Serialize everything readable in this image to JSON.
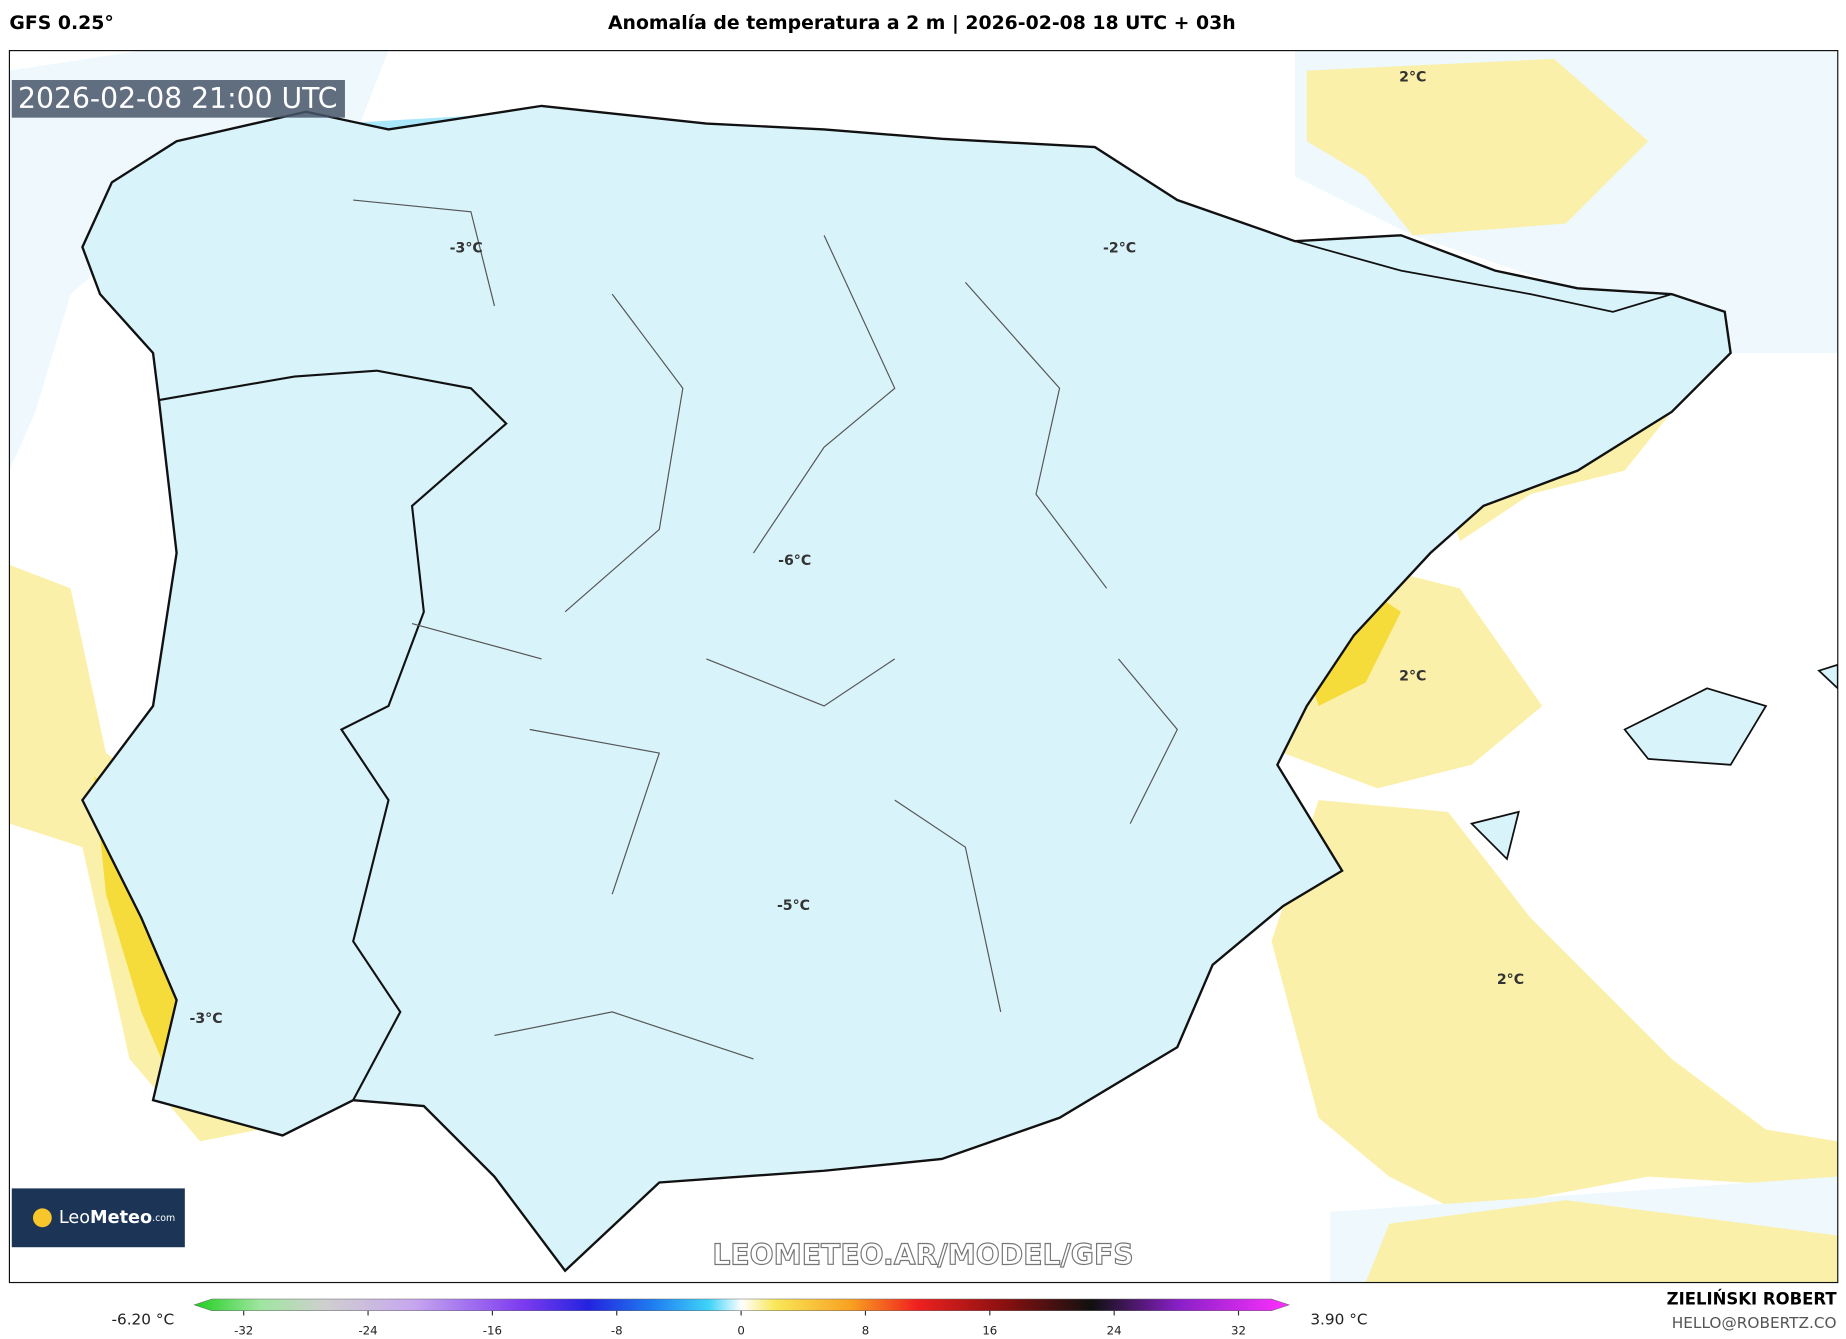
{
  "header": {
    "model": "GFS 0.25°",
    "title": "Anomalía de temperatura a 2 m | 2026-02-08 18 UTC + 03h"
  },
  "map": {
    "valid_time": "2026-02-08 21:00 UTC",
    "contour_labels": [
      "2°C",
      "-3°C",
      "-2°C",
      "-6°C",
      "2°C",
      "-5°C",
      "2°C",
      "-3°C"
    ],
    "watermark": "LEOMETEO.AR/MODEL/GFS",
    "logo": {
      "leo": "Leo",
      "meteo": "Meteo",
      "domain": ".com"
    }
  },
  "colorbar": {
    "min_label": "-6.20 °C",
    "max_label": "3.90 °C",
    "ticks": [
      -32,
      -24,
      -16,
      -8,
      0,
      8,
      16,
      24,
      32
    ]
  },
  "footer": {
    "author": "ZIELIŃSKI ROBERT",
    "email": "HELLO@ROBERTZ.CO"
  }
}
